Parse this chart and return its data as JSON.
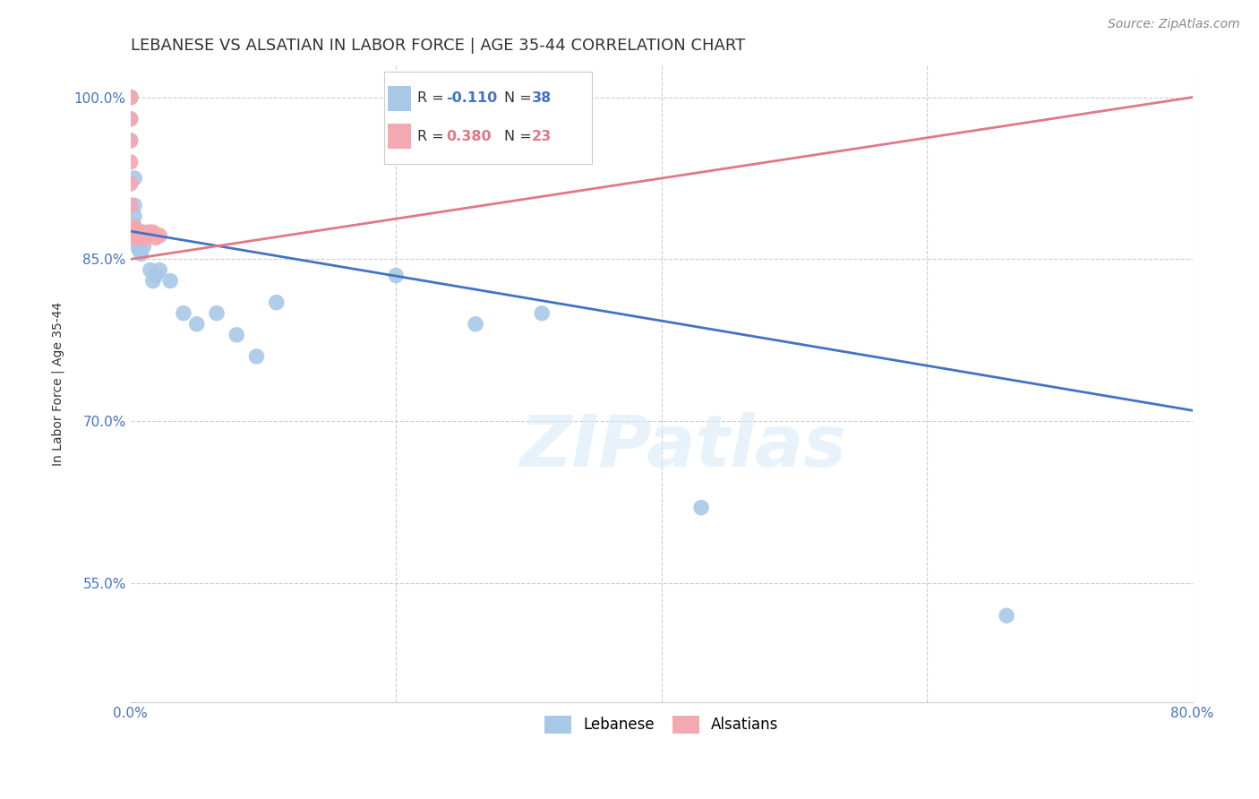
{
  "title": "LEBANESE VS ALSATIAN IN LABOR FORCE | AGE 35-44 CORRELATION CHART",
  "source": "Source: ZipAtlas.com",
  "ylabel": "In Labor Force | Age 35-44",
  "watermark": "ZIPatlas",
  "xlim": [
    0.0,
    0.8
  ],
  "ylim": [
    0.44,
    1.03
  ],
  "ytick_positions": [
    0.55,
    0.7,
    0.85,
    1.0
  ],
  "ytick_labels": [
    "55.0%",
    "70.0%",
    "85.0%",
    "100.0%"
  ],
  "blue_color": "#a8c8e8",
  "pink_color": "#f4a8b0",
  "blue_line_color": "#4472c4",
  "pink_line_color": "#e07888",
  "grid_color": "#cccccc",
  "background_color": "#ffffff",
  "title_fontsize": 13,
  "label_fontsize": 10,
  "tick_fontsize": 11,
  "source_fontsize": 10,
  "blue_x": [
    0.0,
    0.0,
    0.0,
    0.0,
    0.0,
    0.0,
    0.003,
    0.003,
    0.003,
    0.003,
    0.003,
    0.003,
    0.003,
    0.006,
    0.006,
    0.006,
    0.007,
    0.007,
    0.008,
    0.01,
    0.011,
    0.013,
    0.015,
    0.017,
    0.019,
    0.022,
    0.03,
    0.04,
    0.05,
    0.065,
    0.08,
    0.095,
    0.11,
    0.2,
    0.26,
    0.31,
    0.43,
    0.66
  ],
  "blue_y": [
    1.0,
    1.0,
    1.0,
    1.0,
    0.98,
    0.96,
    0.925,
    0.9,
    0.89,
    0.88,
    0.88,
    0.875,
    0.87,
    0.87,
    0.865,
    0.86,
    0.862,
    0.858,
    0.855,
    0.862,
    0.87,
    0.875,
    0.84,
    0.83,
    0.835,
    0.84,
    0.83,
    0.8,
    0.79,
    0.8,
    0.78,
    0.76,
    0.81,
    0.835,
    0.79,
    0.8,
    0.62,
    0.52
  ],
  "pink_x": [
    0.0,
    0.0,
    0.0,
    0.0,
    0.0,
    0.0,
    0.0,
    0.003,
    0.003,
    0.003,
    0.004,
    0.005,
    0.007,
    0.008,
    0.008,
    0.009,
    0.01,
    0.011,
    0.012,
    0.015,
    0.017,
    0.019,
    0.022
  ],
  "pink_y": [
    1.0,
    1.0,
    0.98,
    0.96,
    0.94,
    0.92,
    0.9,
    0.88,
    0.875,
    0.87,
    0.875,
    0.87,
    0.87,
    0.875,
    0.87,
    0.875,
    0.87,
    0.87,
    0.87,
    0.875,
    0.875,
    0.87,
    0.872
  ],
  "blue_line_x0": 0.0,
  "blue_line_y0": 0.876,
  "blue_line_x1": 0.8,
  "blue_line_y1": 0.71,
  "pink_line_x0": 0.0,
  "pink_line_y0": 0.85,
  "pink_line_x1": 0.8,
  "pink_line_y1": 1.0
}
